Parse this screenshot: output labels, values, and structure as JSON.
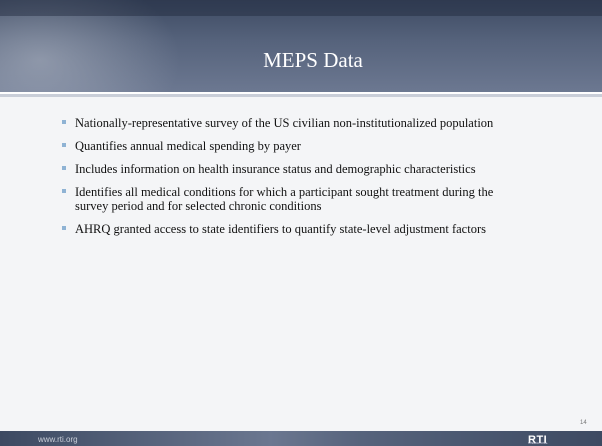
{
  "header": {
    "title": "MEPS Data"
  },
  "bullets": [
    "Nationally-representative survey of the US civilian non-institutionalized population",
    "Quantifies annual medical spending by payer",
    "Includes information on health insurance status and demographic characteristics",
    "Identifies all medical conditions for which a participant sought treatment during the survey period and for selected chronic conditions",
    "AHRQ granted access to state identifiers to quantify state-level adjustment factors"
  ],
  "page_number": "14",
  "footer": {
    "url": "www.rti.org",
    "logo": "RTI",
    "logo_subtitle": "INTERNATIONAL"
  }
}
